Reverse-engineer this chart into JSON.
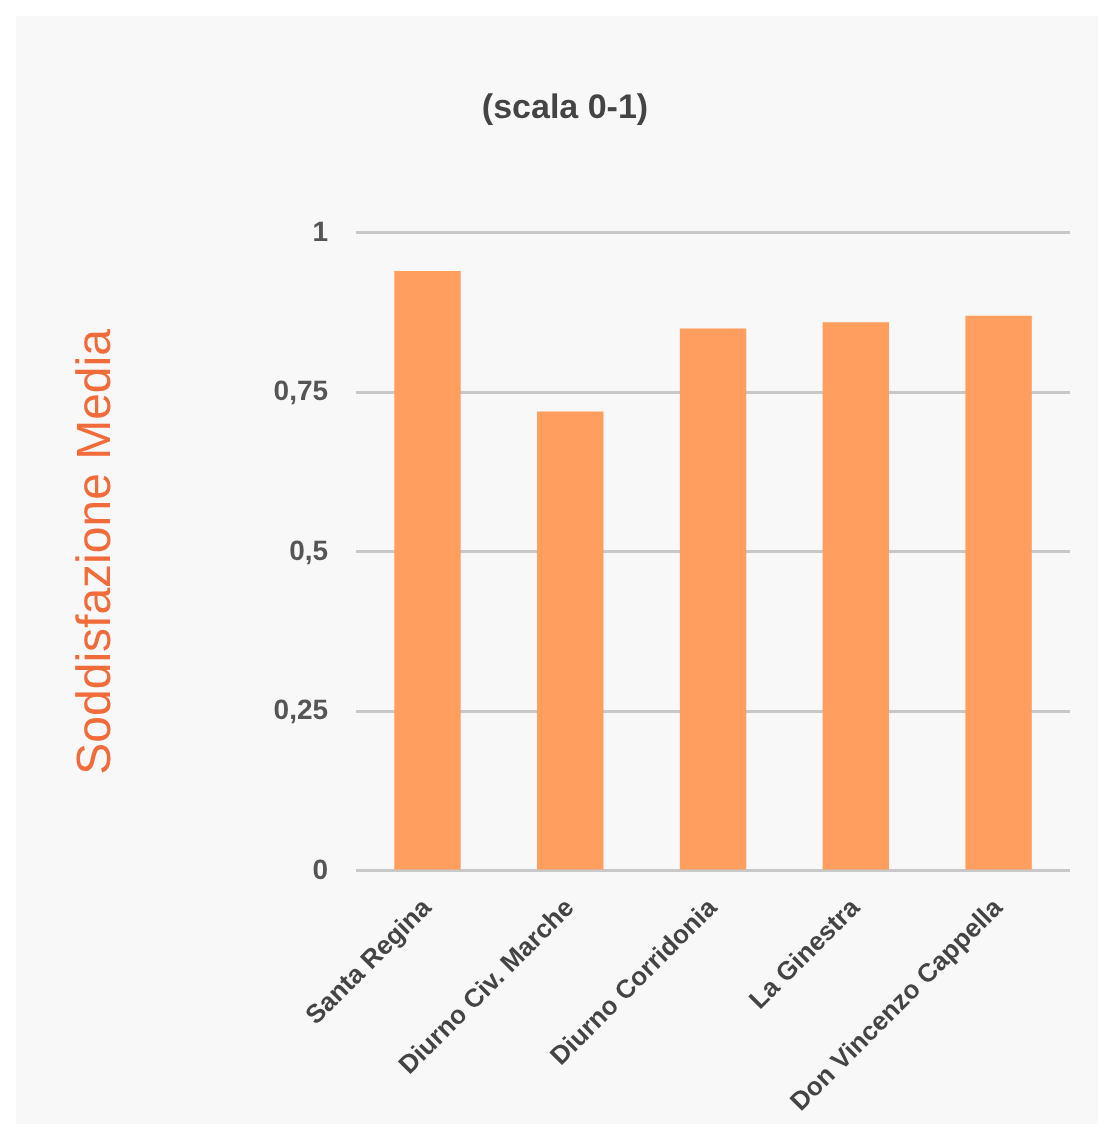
{
  "chart_data": {
    "type": "bar",
    "title": "(scala 0-1)",
    "ylabel": "Soddisfazione Media",
    "categories": [
      "Santa Regina",
      "Diurno Civ. Marche",
      "Diurno Corridonia",
      "La Ginestra",
      "Don Vincenzo Cappella"
    ],
    "values": [
      0.94,
      0.72,
      0.85,
      0.86,
      0.87
    ],
    "color": "#ff9e5e",
    "ylim": [
      0,
      1
    ],
    "yticks": [
      {
        "value": 0,
        "label": "0"
      },
      {
        "value": 0.25,
        "label": "0,25"
      },
      {
        "value": 0.5,
        "label": "0,5"
      },
      {
        "value": 0.75,
        "label": "0,75"
      },
      {
        "value": 1,
        "label": "1"
      }
    ],
    "grid": "y",
    "legend": false
  }
}
